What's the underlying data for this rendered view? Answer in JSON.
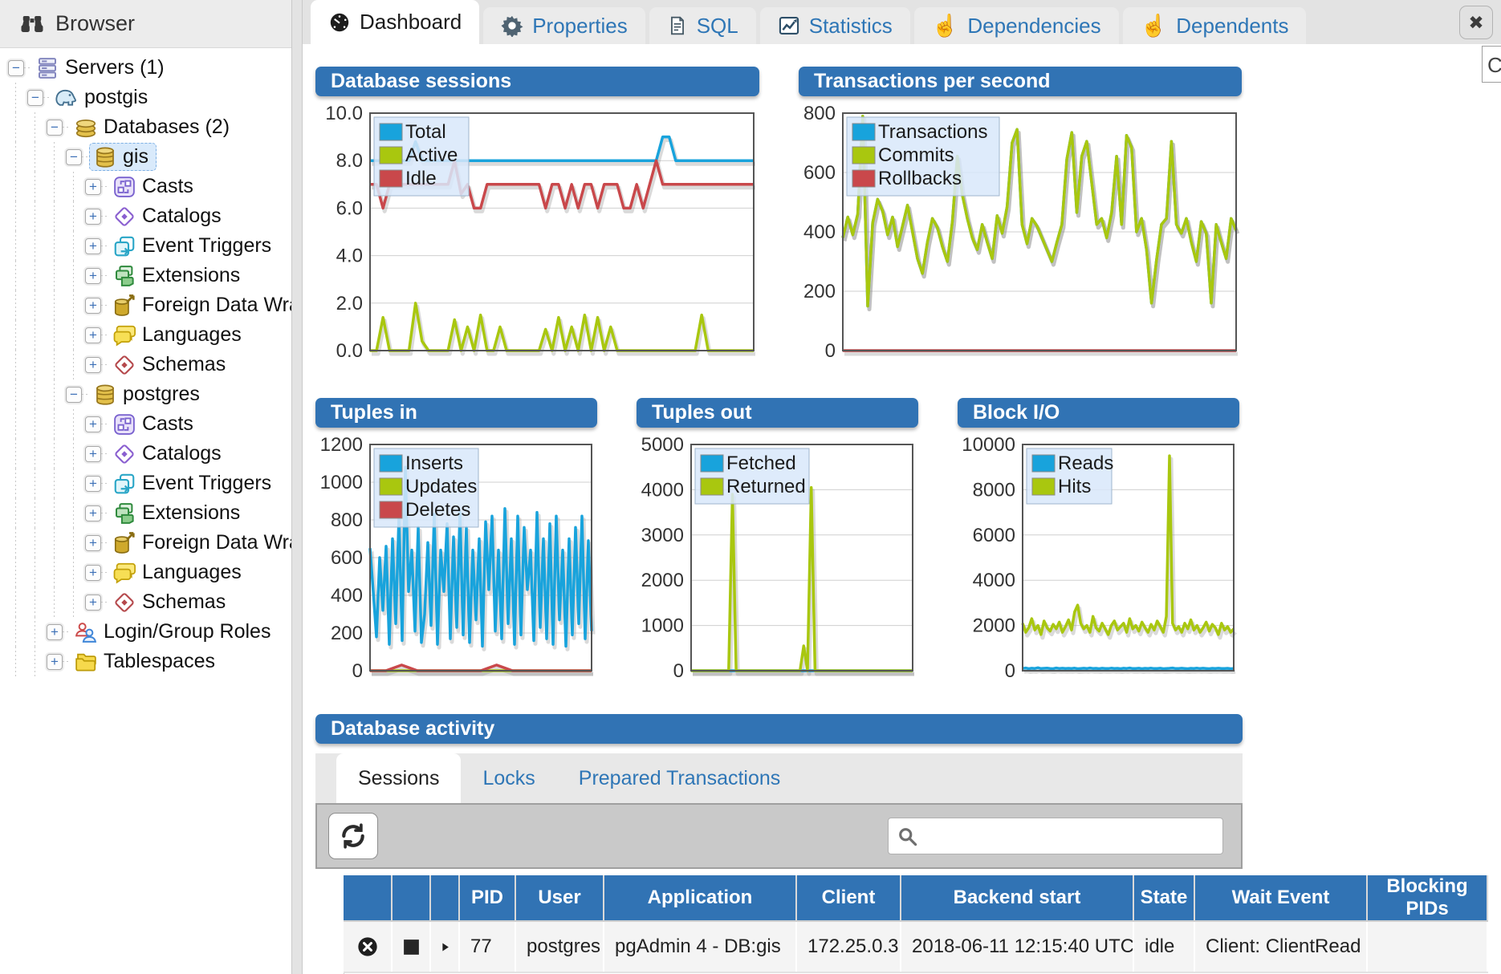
{
  "browser": {
    "title": "Browser",
    "tree": [
      {
        "depth": 0,
        "expander": "minus",
        "icon": "servers",
        "label": "Servers (1)"
      },
      {
        "depth": 1,
        "expander": "minus",
        "icon": "server",
        "label": "postgis"
      },
      {
        "depth": 2,
        "expander": "minus",
        "icon": "databases",
        "label": "Databases (2)"
      },
      {
        "depth": 3,
        "expander": "minus",
        "icon": "database",
        "label": "gis",
        "selected": true
      },
      {
        "depth": 4,
        "expander": "plus",
        "icon": "casts",
        "label": "Casts"
      },
      {
        "depth": 4,
        "expander": "plus",
        "icon": "catalogs",
        "label": "Catalogs"
      },
      {
        "depth": 4,
        "expander": "plus",
        "icon": "event-triggers",
        "label": "Event Triggers"
      },
      {
        "depth": 4,
        "expander": "plus",
        "icon": "extensions",
        "label": "Extensions"
      },
      {
        "depth": 4,
        "expander": "plus",
        "icon": "fdw",
        "label": "Foreign Data Wrap"
      },
      {
        "depth": 4,
        "expander": "plus",
        "icon": "languages",
        "label": "Languages"
      },
      {
        "depth": 4,
        "expander": "plus",
        "icon": "schemas",
        "label": "Schemas"
      },
      {
        "depth": 3,
        "expander": "minus",
        "icon": "database",
        "label": "postgres"
      },
      {
        "depth": 4,
        "expander": "plus",
        "icon": "casts",
        "label": "Casts"
      },
      {
        "depth": 4,
        "expander": "plus",
        "icon": "catalogs",
        "label": "Catalogs"
      },
      {
        "depth": 4,
        "expander": "plus",
        "icon": "event-triggers",
        "label": "Event Triggers"
      },
      {
        "depth": 4,
        "expander": "plus",
        "icon": "extensions",
        "label": "Extensions"
      },
      {
        "depth": 4,
        "expander": "plus",
        "icon": "fdw",
        "label": "Foreign Data Wrap"
      },
      {
        "depth": 4,
        "expander": "plus",
        "icon": "languages",
        "label": "Languages"
      },
      {
        "depth": 4,
        "expander": "plus",
        "icon": "schemas",
        "label": "Schemas"
      },
      {
        "depth": 2,
        "expander": "plus",
        "icon": "roles",
        "label": "Login/Group Roles"
      },
      {
        "depth": 2,
        "expander": "plus",
        "icon": "tablespaces",
        "label": "Tablespaces"
      }
    ]
  },
  "tabs": [
    {
      "label": "Dashboard",
      "icon": "dashboard",
      "active": true
    },
    {
      "label": "Properties",
      "icon": "gear",
      "active": false
    },
    {
      "label": "SQL",
      "icon": "sql",
      "active": false
    },
    {
      "label": "Statistics",
      "icon": "stats",
      "active": false
    },
    {
      "label": "Dependencies",
      "icon": "hand",
      "active": false
    },
    {
      "label": "Dependents",
      "icon": "hand",
      "active": false
    }
  ],
  "close_glyph": "✖",
  "partial_popup_text": "C",
  "colors": {
    "header_blue": "#3173b4",
    "line_blue": "#18a3dc",
    "line_green": "#a9c70f",
    "line_red": "#c9484b"
  },
  "chart_data": [
    {
      "type": "line",
      "title": "Database sessions",
      "ylim": [
        0,
        10
      ],
      "yticks": [
        "10.0",
        "8.0",
        "6.0",
        "4.0",
        "2.0",
        "0.0"
      ],
      "legend_position": "top-left",
      "grid": true,
      "series": [
        {
          "name": "Total",
          "color": "#18a3dc",
          "values": [
            8,
            8,
            8,
            8,
            8,
            8,
            8,
            8.8,
            8,
            8,
            8,
            8,
            8,
            8,
            8,
            8,
            8,
            8,
            8,
            8,
            8,
            8,
            8,
            8,
            8,
            8,
            8,
            8,
            8,
            8,
            8,
            8,
            8,
            8,
            8,
            8,
            8,
            8,
            8,
            8,
            8,
            8,
            8,
            8,
            8,
            9,
            9,
            8,
            8,
            8,
            8,
            8,
            8,
            8,
            8,
            8,
            8,
            8,
            8,
            8
          ]
        },
        {
          "name": "Active",
          "color": "#a9c70f",
          "values": [
            0,
            0,
            1.4,
            0,
            0,
            0,
            0,
            2,
            0.4,
            0,
            0,
            0,
            0,
            1.3,
            0,
            1,
            0,
            1.5,
            0,
            0,
            1,
            0,
            0,
            0,
            0,
            0,
            0,
            0.9,
            0,
            1.4,
            0,
            1,
            0,
            1.5,
            0,
            1.4,
            0,
            1,
            0,
            0,
            0,
            0,
            0,
            0,
            0,
            0,
            0,
            0,
            0,
            0,
            0,
            1.5,
            0,
            0,
            0,
            0,
            0,
            0,
            0,
            0
          ]
        },
        {
          "name": "Idle",
          "color": "#c9484b",
          "values": [
            7,
            7,
            6,
            7,
            7,
            7,
            7,
            7,
            7,
            7,
            7,
            7,
            7,
            8,
            6.6,
            7,
            6,
            6,
            7,
            7,
            7,
            7,
            7,
            7,
            7,
            7,
            7,
            6,
            7,
            7,
            6,
            7,
            6,
            7,
            7,
            6,
            7,
            7,
            7,
            6,
            6,
            7,
            6,
            7,
            8,
            7,
            7,
            7,
            7,
            7,
            7,
            7,
            7,
            7,
            7,
            7,
            7,
            7,
            7,
            7
          ]
        }
      ]
    },
    {
      "type": "line",
      "title": "Transactions per second",
      "ylim": [
        0,
        800
      ],
      "yticks": [
        "800",
        "600",
        "400",
        "200",
        "0"
      ],
      "legend_position": "top-left",
      "grid": true,
      "series": [
        {
          "name": "Transactions",
          "color": "#18a3dc",
          "values": [
            380,
            450,
            390,
            460,
            790,
            150,
            430,
            510,
            470,
            390,
            450,
            350,
            420,
            490,
            400,
            310,
            260,
            365,
            445,
            415,
            350,
            300,
            435,
            655,
            525,
            445,
            380,
            340,
            425,
            365,
            310,
            455,
            395,
            485,
            700,
            745,
            425,
            360,
            445,
            420,
            380,
            340,
            300,
            365,
            425,
            645,
            735,
            465,
            655,
            705,
            565,
            425,
            445,
            380,
            465,
            655,
            425,
            725,
            685,
            400,
            445,
            340,
            160,
            305,
            425,
            445,
            705,
            425,
            395,
            445,
            365,
            300,
            435,
            395,
            160,
            425,
            365,
            310,
            445,
            405
          ]
        },
        {
          "name": "Commits",
          "color": "#a9c70f",
          "values": [
            380,
            450,
            390,
            460,
            790,
            150,
            430,
            510,
            470,
            390,
            450,
            350,
            420,
            490,
            400,
            310,
            260,
            365,
            445,
            415,
            350,
            300,
            435,
            655,
            525,
            445,
            380,
            340,
            425,
            365,
            310,
            455,
            395,
            485,
            700,
            745,
            425,
            360,
            445,
            420,
            380,
            340,
            300,
            365,
            425,
            645,
            735,
            465,
            655,
            705,
            565,
            425,
            445,
            380,
            465,
            655,
            425,
            725,
            685,
            400,
            445,
            340,
            160,
            305,
            425,
            445,
            705,
            425,
            395,
            445,
            365,
            300,
            435,
            395,
            160,
            425,
            365,
            310,
            445,
            405
          ]
        },
        {
          "name": "Rollbacks",
          "color": "#c9484b",
          "values": [
            0,
            0
          ]
        }
      ]
    },
    {
      "type": "line",
      "title": "Tuples in",
      "ylim": [
        0,
        1200
      ],
      "yticks": [
        "1200",
        "1000",
        "800",
        "600",
        "400",
        "200",
        "0"
      ],
      "legend_position": "top-left",
      "grid": true,
      "series": [
        {
          "name": "Inserts",
          "color": "#18a3dc",
          "values": [
            650,
            420,
            180,
            600,
            320,
            660,
            140,
            700,
            250,
            820,
            160,
            1080,
            420,
            640,
            210,
            760,
            150,
            300,
            680,
            240,
            830,
            140,
            640,
            420,
            780,
            170,
            710,
            230,
            840,
            190,
            760,
            150,
            640,
            270,
            700,
            130,
            790,
            430,
            820,
            210,
            640,
            170,
            860,
            250,
            700,
            140,
            820,
            190,
            760,
            430,
            640,
            160,
            840,
            230,
            700,
            170,
            780,
            140,
            820,
            270,
            640,
            130,
            700,
            190,
            760,
            250,
            820,
            170,
            690,
            210
          ]
        },
        {
          "name": "Updates",
          "color": "#a9c70f",
          "values": [
            0,
            0
          ]
        },
        {
          "name": "Deletes",
          "color": "#c9484b",
          "values": [
            0,
            0,
            30,
            0,
            0,
            0,
            0,
            0,
            30,
            0,
            0,
            0,
            0,
            0,
            0
          ]
        }
      ]
    },
    {
      "type": "line",
      "title": "Tuples out",
      "ylim": [
        0,
        5000
      ],
      "yticks": [
        "5000",
        "4000",
        "3000",
        "2000",
        "1000",
        "0"
      ],
      "legend_position": "top-left",
      "grid": true,
      "series": [
        {
          "name": "Fetched",
          "color": "#18a3dc",
          "values": [
            0,
            0
          ]
        },
        {
          "name": "Returned",
          "color": "#a9c70f",
          "values": [
            0,
            0,
            0,
            0,
            0,
            0,
            0,
            0,
            0,
            0,
            0,
            3900,
            0,
            0,
            0,
            0,
            0,
            0,
            0,
            0,
            0,
            0,
            0,
            0,
            0,
            0,
            0,
            0,
            0,
            0,
            550,
            0,
            4050,
            0,
            0,
            0,
            0,
            0,
            0,
            0,
            0,
            0,
            0,
            0,
            0,
            0,
            0,
            0,
            0,
            0,
            0,
            0,
            0,
            0,
            0,
            0,
            0,
            0,
            0,
            0
          ]
        }
      ]
    },
    {
      "type": "line",
      "title": "Block I/O",
      "ylim": [
        0,
        10000
      ],
      "yticks": [
        "10000",
        "8000",
        "6000",
        "4000",
        "2000",
        "0"
      ],
      "legend_position": "top-left",
      "grid": true,
      "series": [
        {
          "name": "Reads",
          "color": "#18a3dc",
          "values": [
            100,
            120,
            90,
            110,
            100,
            130,
            95,
            105,
            115,
            100,
            90,
            120,
            100,
            110,
            95,
            105,
            100,
            115,
            90,
            100,
            110,
            95,
            120,
            100,
            105,
            90,
            110,
            100,
            95,
            115,
            100,
            105,
            90,
            110,
            100,
            120,
            95,
            100,
            110,
            90,
            105,
            100,
            115,
            95,
            100,
            110,
            90,
            100,
            105,
            120,
            95,
            100,
            110,
            100,
            90,
            105,
            100,
            115,
            95,
            110,
            100,
            90,
            105,
            100,
            110,
            95,
            100,
            105,
            90,
            100
          ]
        },
        {
          "name": "Hits",
          "color": "#a9c70f",
          "values": [
            2100,
            1700,
            1900,
            2300,
            1800,
            2000,
            1600,
            2200,
            1900,
            1750,
            2050,
            1850,
            2150,
            1700,
            1950,
            2250,
            1800,
            2600,
            2900,
            2100,
            1850,
            2000,
            1700,
            2400,
            1900,
            1750,
            2100,
            1850,
            1600,
            2000,
            2200,
            1800,
            1950,
            2100,
            1700,
            2300,
            1850,
            2000,
            1750,
            2150,
            1900,
            1700,
            2050,
            1800,
            2200,
            1950,
            1700,
            2400,
            9500,
            2100,
            1800,
            1950,
            1700,
            2100,
            1850,
            2250,
            1800,
            2000,
            1700,
            1900,
            2150,
            1750,
            2050,
            1900,
            1600,
            2100,
            1800,
            1950,
            1700,
            1850
          ]
        }
      ]
    }
  ],
  "activity": {
    "title": "Database activity",
    "tabs": [
      {
        "label": "Sessions",
        "active": true
      },
      {
        "label": "Locks",
        "active": false
      },
      {
        "label": "Prepared Transactions",
        "active": false
      }
    ],
    "search_value": "",
    "table": {
      "columns": [
        "",
        "",
        "",
        "PID",
        "User",
        "Application",
        "Client",
        "Backend start",
        "State",
        "Wait Event",
        "Blocking PIDs"
      ],
      "rows": [
        {
          "controls": [
            "cancel",
            "stop",
            "expand"
          ],
          "cells": [
            "77",
            "postgres",
            "pgAdmin 4 - DB:gis",
            "172.25.0.3",
            "2018-06-11 12:15:40 UTC",
            "idle",
            "Client: ClientRead",
            ""
          ]
        }
      ]
    }
  }
}
